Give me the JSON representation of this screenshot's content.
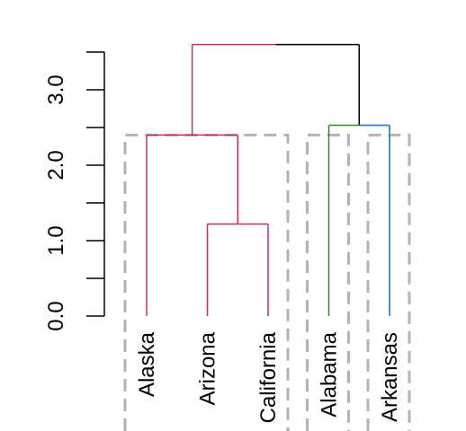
{
  "chart_data": {
    "type": "dendrogram",
    "title": "",
    "xlabel": "",
    "ylabel": "",
    "ylim": [
      0,
      3.6
    ],
    "y_ticks": [
      0.0,
      0.5,
      1.0,
      1.5,
      2.0,
      2.5,
      3.0,
      3.5
    ],
    "y_tick_labels": [
      {
        "value": 0.0,
        "label": "0.0"
      },
      {
        "value": 1.0,
        "label": "1.0"
      },
      {
        "value": 2.0,
        "label": "2.0"
      },
      {
        "value": 3.0,
        "label": "3.0"
      }
    ],
    "leaves": [
      {
        "label": "Alaska",
        "cluster": 0
      },
      {
        "label": "Arizona",
        "cluster": 0
      },
      {
        "label": "California",
        "cluster": 0
      },
      {
        "label": "Alabama",
        "cluster": 1
      },
      {
        "label": "Arkansas",
        "cluster": 2
      }
    ],
    "merges": [
      {
        "left": "Arizona",
        "right": "California",
        "height": 1.22,
        "cluster": 0
      },
      {
        "left": "Alaska",
        "right": "Arizona+California",
        "height": 2.4,
        "cluster": 0
      },
      {
        "left": "Alabama",
        "right": "Arkansas",
        "height": 2.53,
        "cluster": 1
      },
      {
        "left": "Alaska+Arizona+California",
        "right": "Alabama+Arkansas",
        "height": 3.6,
        "cluster": null
      }
    ],
    "cut_height": 2.4,
    "cluster_colors": [
      "#C0306A",
      "#2E8B1E",
      "#2F80C8"
    ],
    "root_color": "#000000",
    "rect_color": "#B3B3B3"
  }
}
